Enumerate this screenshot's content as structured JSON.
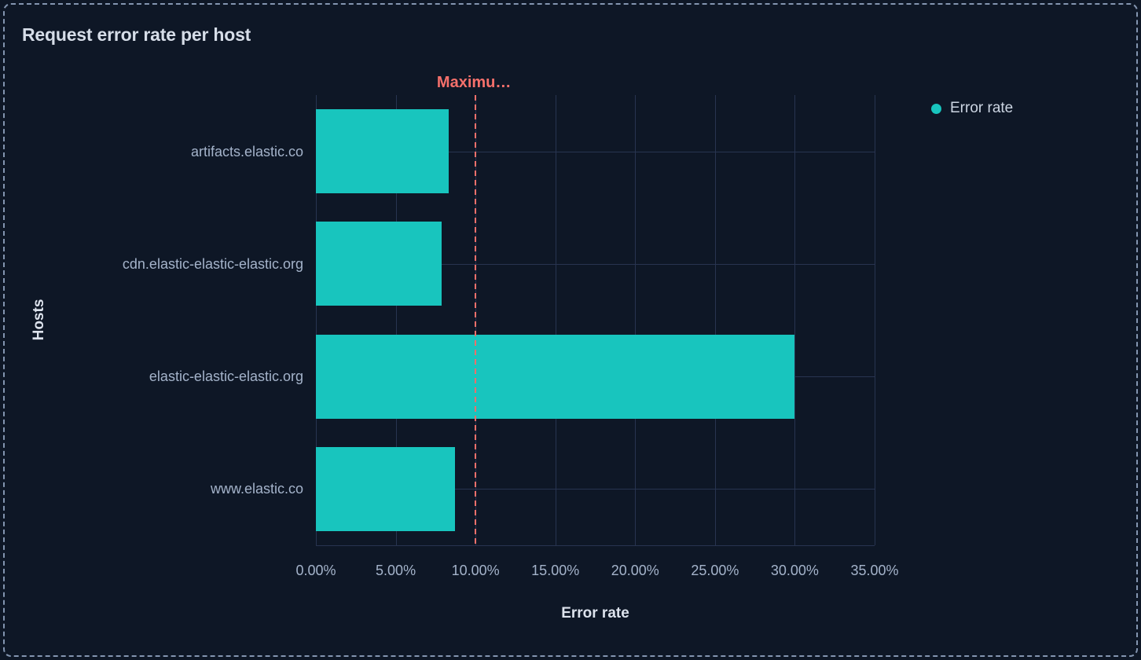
{
  "panel": {
    "title": "Request error rate per host"
  },
  "legend": {
    "position": "right",
    "items": [
      {
        "label": "Error rate",
        "color": "#18c5be"
      }
    ]
  },
  "colors": {
    "background": "#0e1726",
    "bar": "#18c5be",
    "grid": "#283450",
    "annotation": "#f5706b",
    "panel_border": "#8395b0",
    "title_text": "#d6dde8",
    "axis_text": "#a4b3ca",
    "axis_title_text": "#dde3ed",
    "legend_text": "#ccd5e2"
  },
  "chart_data": {
    "type": "bar",
    "orientation": "horizontal",
    "title": "Request error rate per host",
    "series_name": "Error rate",
    "categories": [
      "artifacts.elastic.co",
      "cdn.elastic-elastic-elastic.org",
      "elastic-elastic-elastic.org",
      "www.elastic.co"
    ],
    "values": [
      8.3,
      7.9,
      30,
      8.7
    ],
    "value_unit": "%",
    "xlabel": "Error rate",
    "ylabel": "Hosts",
    "xlim": [
      0,
      35
    ],
    "x_tick_values": [
      0,
      5,
      10,
      15,
      20,
      25,
      30,
      35
    ],
    "x_ticks": [
      "0.00%",
      "5.00%",
      "10.00%",
      "15.00%",
      "20.00%",
      "25.00%",
      "30.00%",
      "35.00%"
    ],
    "grid": true,
    "legend_position": "right",
    "annotation": {
      "label": "Maximu…",
      "value": 10,
      "line_style": "dashed"
    }
  }
}
